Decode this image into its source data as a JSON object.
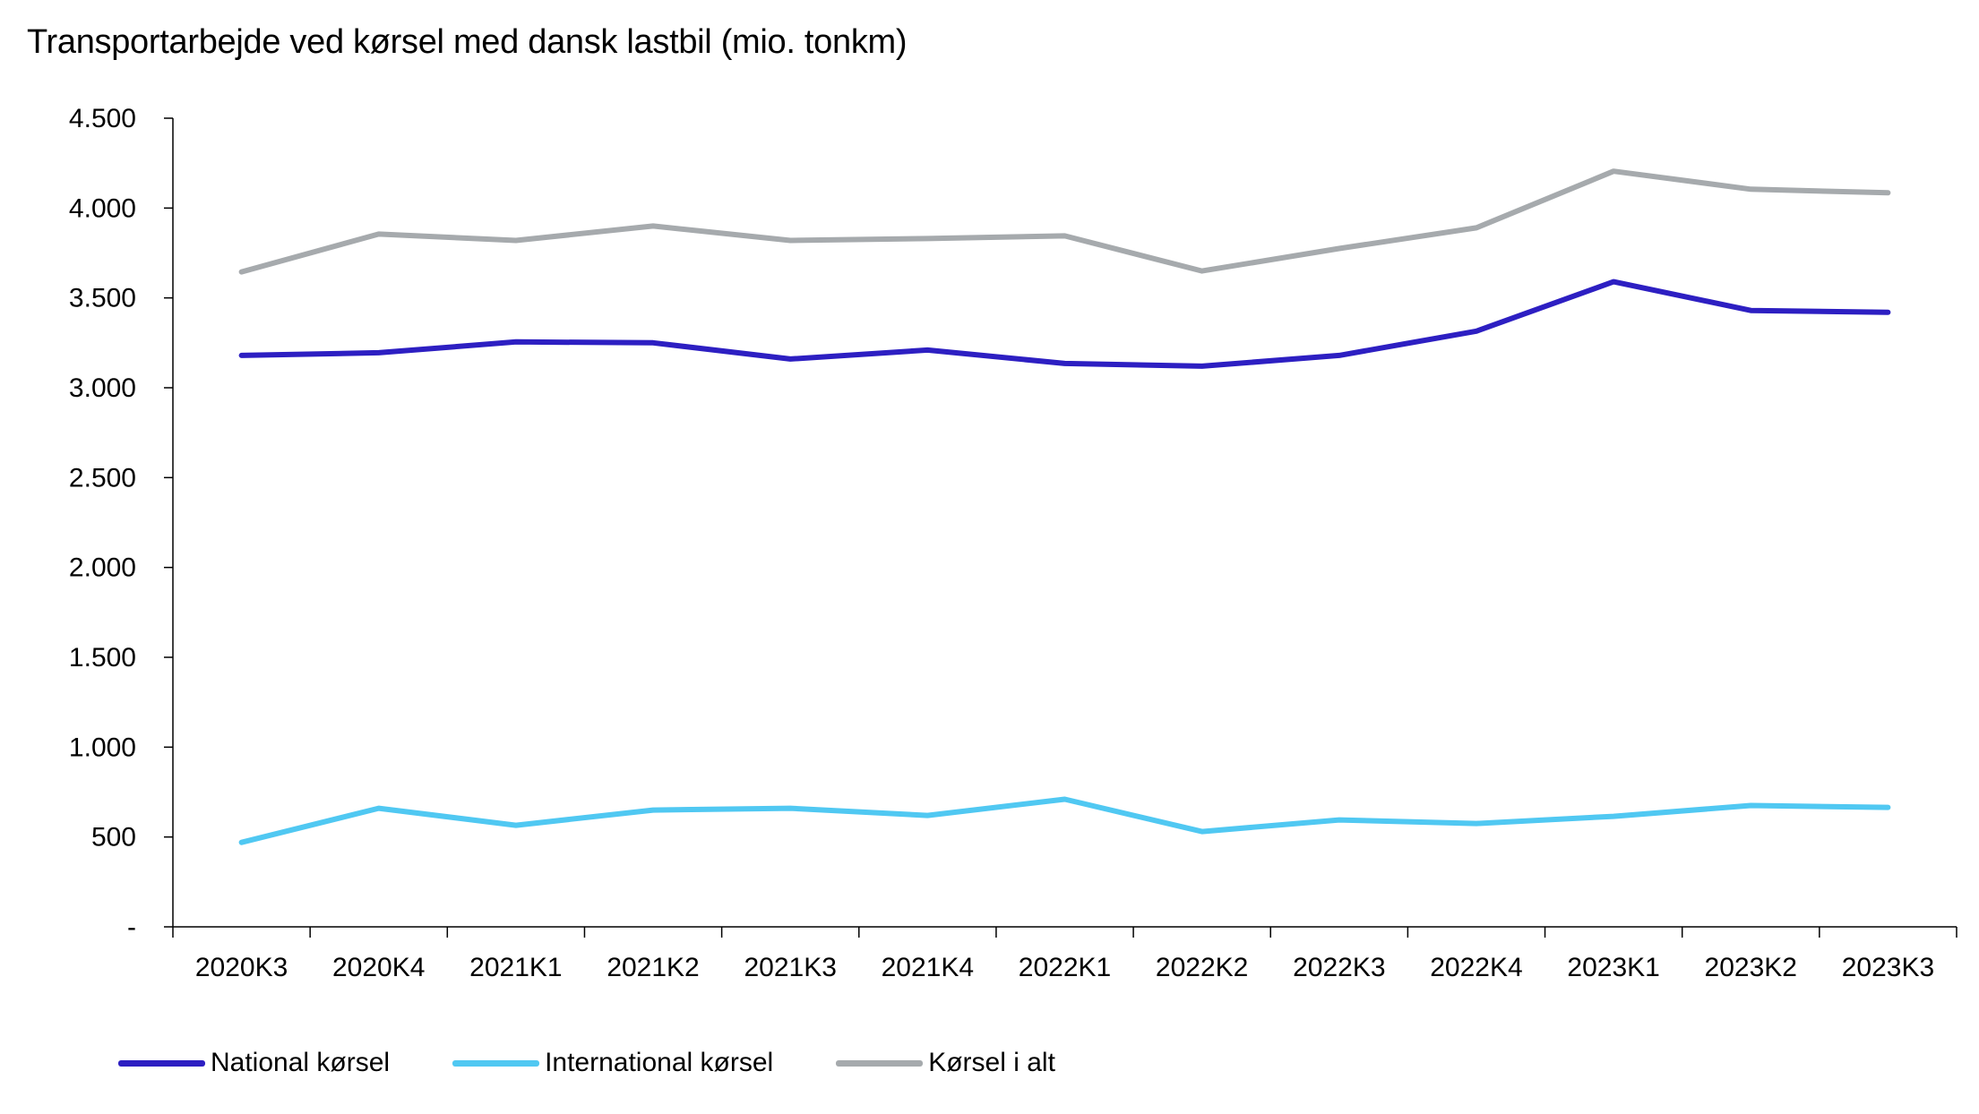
{
  "chart_data": {
    "type": "line",
    "title": "Transportarbejde ved kørsel med dansk lastbil (mio. tonkm)",
    "categories": [
      "2020K3",
      "2020K4",
      "2021K1",
      "2021K2",
      "2021K3",
      "2021K4",
      "2022K1",
      "2022K2",
      "2022K3",
      "2022K4",
      "2023K1",
      "2023K2",
      "2023K3"
    ],
    "ylim": [
      0,
      4500
    ],
    "y_ticks": [
      0,
      500,
      1000,
      1500,
      2000,
      2500,
      3000,
      3500,
      4000,
      4500
    ],
    "y_tick_labels": [
      "-",
      "500",
      "1.000",
      "1.500",
      "2.000",
      "2.500",
      "3.000",
      "3.500",
      "4.000",
      "4.500"
    ],
    "grid": false,
    "legend_position": "bottom-left",
    "series": [
      {
        "name": "National kørsel",
        "color": "#2d1fc2",
        "values": [
          3180,
          3195,
          3255,
          3250,
          3160,
          3210,
          3135,
          3120,
          3180,
          3315,
          3590,
          3430,
          3420
        ]
      },
      {
        "name": "International kørsel",
        "color": "#50c8f2",
        "values": [
          470,
          660,
          565,
          650,
          660,
          620,
          710,
          530,
          595,
          575,
          615,
          675,
          665
        ]
      },
      {
        "name": "Kørsel i alt",
        "color": "#a6aaad",
        "values": [
          3645,
          3855,
          3820,
          3900,
          3820,
          3830,
          3845,
          3650,
          3775,
          3890,
          4205,
          4105,
          4085
        ]
      }
    ]
  }
}
